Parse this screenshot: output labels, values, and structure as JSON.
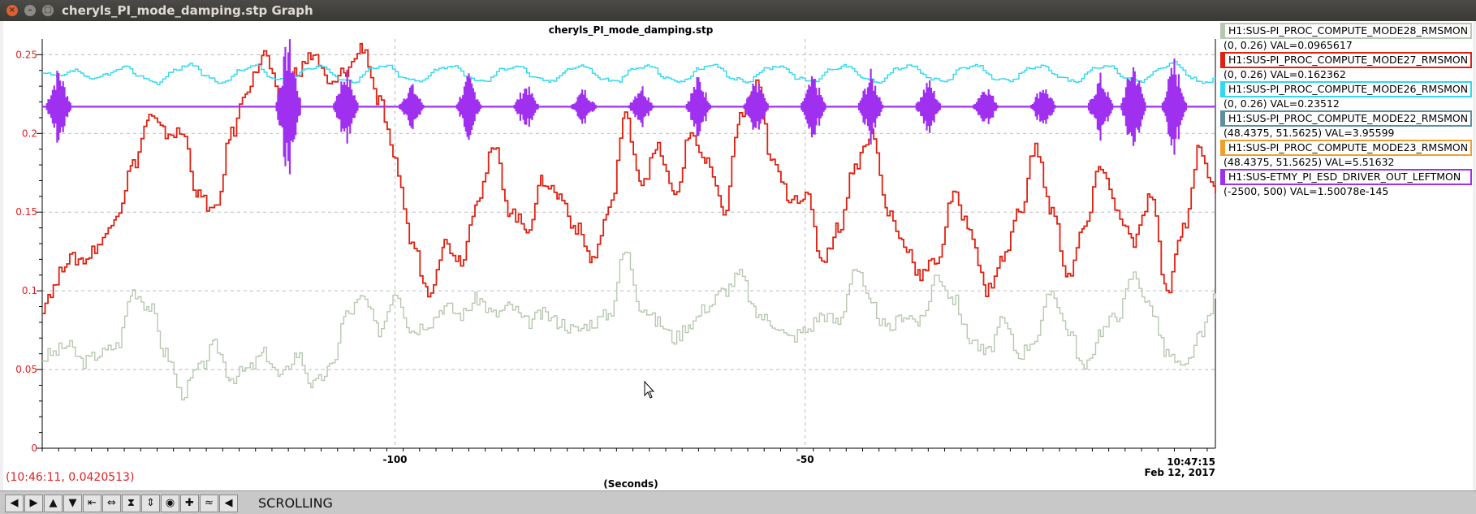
{
  "window": {
    "title": "cheryls_PI_mode_damping.stp Graph"
  },
  "chart_data": {
    "type": "line",
    "title": "cheryls_PI_mode_damping.stp",
    "xlabel": "(Seconds)",
    "xlim": [
      -143,
      0
    ],
    "ylim": [
      0,
      0.26
    ],
    "x_ticks": [
      -100,
      -50
    ],
    "x_tick_labels": [
      "-100",
      "-50"
    ],
    "x_end_time": "10:47:15",
    "x_end_date": "Feb 12, 2017",
    "y_ticks": [
      0,
      0.05,
      0.1,
      0.15,
      0.2,
      0.25
    ],
    "y_tick_labels": [
      "0",
      "0.05",
      "0.1",
      "0.15",
      "0.2",
      "0.25"
    ],
    "grid": true,
    "legend_position": "right",
    "series": [
      {
        "name": "H1:SUS-PI_PROC_COMPUTE_MODE28_RMSMON",
        "range": "(0, 0.26)",
        "val": "VAL=0.0965617",
        "color": "#b8c8b0",
        "x": [
          -143,
          -142,
          -140,
          -138,
          -136,
          -134,
          -132,
          -130,
          -128,
          -126,
          -124,
          -122,
          -120,
          -118,
          -116,
          -114,
          -112,
          -110,
          -108,
          -106,
          -104,
          -102,
          -100,
          -98,
          -96,
          -94,
          -92,
          -90,
          -88,
          -86,
          -84,
          -82,
          -80,
          -78,
          -76,
          -74,
          -72,
          -70,
          -68,
          -66,
          -64,
          -62,
          -60,
          -58,
          -56,
          -54,
          -52,
          -50,
          -48,
          -46,
          -44,
          -42,
          -40,
          -38,
          -36,
          -34,
          -32,
          -30,
          -28,
          -26,
          -24,
          -22,
          -20,
          -18,
          -16,
          -14,
          -12,
          -10,
          -8,
          -6,
          -4,
          -2,
          0
        ],
        "values": [
          0.057,
          0.06,
          0.065,
          0.055,
          0.06,
          0.065,
          0.1,
          0.09,
          0.06,
          0.035,
          0.05,
          0.065,
          0.045,
          0.05,
          0.06,
          0.045,
          0.06,
          0.04,
          0.05,
          0.085,
          0.095,
          0.075,
          0.1,
          0.075,
          0.08,
          0.09,
          0.085,
          0.095,
          0.085,
          0.09,
          0.08,
          0.085,
          0.08,
          0.075,
          0.08,
          0.085,
          0.125,
          0.09,
          0.08,
          0.07,
          0.08,
          0.09,
          0.1,
          0.11,
          0.085,
          0.08,
          0.07,
          0.075,
          0.085,
          0.08,
          0.115,
          0.09,
          0.075,
          0.085,
          0.08,
          0.11,
          0.095,
          0.07,
          0.06,
          0.08,
          0.06,
          0.07,
          0.1,
          0.075,
          0.05,
          0.075,
          0.085,
          0.11,
          0.09,
          0.06,
          0.05,
          0.07,
          0.095
        ]
      },
      {
        "name": "H1:SUS-PI_PROC_COMPUTE_MODE27_RMSMON",
        "range": "(0, 0.26)",
        "val": "VAL=0.162362",
        "color": "#e02010",
        "x": [
          -143,
          -142,
          -140,
          -138,
          -136,
          -134,
          -132,
          -130,
          -128,
          -126,
          -124,
          -122,
          -120,
          -118,
          -116,
          -114,
          -112,
          -110,
          -108,
          -106,
          -104,
          -102,
          -100,
          -98,
          -96,
          -94,
          -92,
          -90,
          -88,
          -86,
          -84,
          -82,
          -80,
          -78,
          -76,
          -74,
          -72,
          -70,
          -68,
          -66,
          -64,
          -62,
          -60,
          -58,
          -56,
          -54,
          -52,
          -50,
          -48,
          -46,
          -44,
          -42,
          -40,
          -38,
          -36,
          -34,
          -32,
          -30,
          -28,
          -26,
          -24,
          -22,
          -20,
          -18,
          -16,
          -14,
          -12,
          -10,
          -8,
          -6,
          -4,
          -2,
          0
        ],
        "values": [
          0.09,
          0.1,
          0.12,
          0.12,
          0.13,
          0.15,
          0.18,
          0.21,
          0.2,
          0.2,
          0.16,
          0.15,
          0.2,
          0.23,
          0.25,
          0.22,
          0.24,
          0.25,
          0.23,
          0.24,
          0.255,
          0.22,
          0.18,
          0.13,
          0.1,
          0.13,
          0.12,
          0.16,
          0.19,
          0.15,
          0.14,
          0.17,
          0.16,
          0.14,
          0.12,
          0.15,
          0.21,
          0.17,
          0.19,
          0.16,
          0.2,
          0.18,
          0.15,
          0.21,
          0.23,
          0.18,
          0.16,
          0.16,
          0.12,
          0.14,
          0.18,
          0.2,
          0.15,
          0.13,
          0.11,
          0.12,
          0.16,
          0.14,
          0.1,
          0.12,
          0.15,
          0.19,
          0.15,
          0.11,
          0.14,
          0.18,
          0.15,
          0.13,
          0.16,
          0.1,
          0.14,
          0.19,
          0.162
        ]
      },
      {
        "name": "H1:SUS-PI_PROC_COMPUTE_MODE26_RMSMON",
        "range": "(0, 0.26)",
        "val": "VAL=0.23512",
        "color": "#30d8f0",
        "x": [
          -143,
          -141,
          -139,
          -137,
          -135,
          -133,
          -131,
          -129,
          -127,
          -125,
          -123,
          -121,
          -119,
          -117,
          -115,
          -113,
          -111,
          -109,
          -107,
          -105,
          -103,
          -101,
          -99,
          -97,
          -95,
          -93,
          -91,
          -89,
          -87,
          -85,
          -83,
          -81,
          -79,
          -77,
          -75,
          -73,
          -71,
          -69,
          -67,
          -65,
          -63,
          -61,
          -59,
          -57,
          -55,
          -53,
          -51,
          -49,
          -47,
          -45,
          -43,
          -41,
          -39,
          -37,
          -35,
          -33,
          -31,
          -29,
          -27,
          -25,
          -23,
          -21,
          -19,
          -17,
          -15,
          -13,
          -11,
          -9,
          -7,
          -5,
          -3,
          -1,
          0
        ],
        "values": [
          0.238,
          0.236,
          0.24,
          0.234,
          0.238,
          0.242,
          0.236,
          0.232,
          0.24,
          0.244,
          0.236,
          0.232,
          0.24,
          0.243,
          0.235,
          0.233,
          0.241,
          0.243,
          0.235,
          0.233,
          0.241,
          0.243,
          0.235,
          0.233,
          0.241,
          0.243,
          0.235,
          0.233,
          0.241,
          0.243,
          0.235,
          0.233,
          0.241,
          0.243,
          0.235,
          0.233,
          0.241,
          0.243,
          0.235,
          0.233,
          0.241,
          0.243,
          0.235,
          0.233,
          0.241,
          0.243,
          0.235,
          0.233,
          0.241,
          0.243,
          0.235,
          0.233,
          0.241,
          0.243,
          0.235,
          0.233,
          0.241,
          0.243,
          0.235,
          0.233,
          0.241,
          0.243,
          0.235,
          0.233,
          0.241,
          0.243,
          0.235,
          0.233,
          0.241,
          0.245,
          0.235,
          0.232,
          0.235
        ]
      },
      {
        "name": "H1:SUS-PI_PROC_COMPUTE_MODE22_RMSMON",
        "range": "(48.4375, 51.5625)",
        "val": "VAL=3.95599",
        "color": "#5f8f9f",
        "x": [],
        "values": []
      },
      {
        "name": "H1:SUS-PI_PROC_COMPUTE_MODE23_RMSMON",
        "range": "(48.4375, 51.5625)",
        "val": "VAL=5.51632",
        "color": "#f0a030",
        "x": [],
        "values": []
      },
      {
        "name": "H1:SUS-ETMY_PI_ESD_DRIVER_OUT_LEFTMON",
        "range": "(-2500, 500)",
        "val": "VAL=1.50078e-145",
        "color": "#a030f0",
        "baseline": 0.217,
        "bursts": [
          {
            "center": -141,
            "amp": 0.025
          },
          {
            "center": -113,
            "amp": 0.045
          },
          {
            "center": -106,
            "amp": 0.025
          },
          {
            "center": -98,
            "amp": 0.015
          },
          {
            "center": -91,
            "amp": 0.02
          },
          {
            "center": -84,
            "amp": 0.015
          },
          {
            "center": -77,
            "amp": 0.012
          },
          {
            "center": -70,
            "amp": 0.015
          },
          {
            "center": -63,
            "amp": 0.02
          },
          {
            "center": -56,
            "amp": 0.018
          },
          {
            "center": -49,
            "amp": 0.02
          },
          {
            "center": -42,
            "amp": 0.022
          },
          {
            "center": -35,
            "amp": 0.018
          },
          {
            "center": -28,
            "amp": 0.015
          },
          {
            "center": -21,
            "amp": 0.015
          },
          {
            "center": -14,
            "amp": 0.02
          },
          {
            "center": -10,
            "amp": 0.03
          },
          {
            "center": -5,
            "amp": 0.03
          }
        ]
      }
    ]
  },
  "readout": "(10:46:11, 0.0420513)",
  "toolbar": {
    "buttons": [
      {
        "name": "scroll-left-button",
        "glyph": "◀"
      },
      {
        "name": "scroll-right-button",
        "glyph": "▶"
      },
      {
        "name": "scroll-up-button",
        "glyph": "▲"
      },
      {
        "name": "scroll-down-button",
        "glyph": "▼"
      },
      {
        "name": "compress-x-button",
        "glyph": "⇤"
      },
      {
        "name": "expand-x-button",
        "glyph": "⇔"
      },
      {
        "name": "compress-y-button",
        "glyph": "⧗"
      },
      {
        "name": "expand-y-button",
        "glyph": "⇕"
      },
      {
        "name": "reset-button",
        "glyph": "◉"
      },
      {
        "name": "zoom-button",
        "glyph": "✚"
      },
      {
        "name": "waveform-button",
        "glyph": "≈"
      },
      {
        "name": "back-button",
        "glyph": "◀"
      }
    ],
    "mode": "SCROLLING"
  }
}
